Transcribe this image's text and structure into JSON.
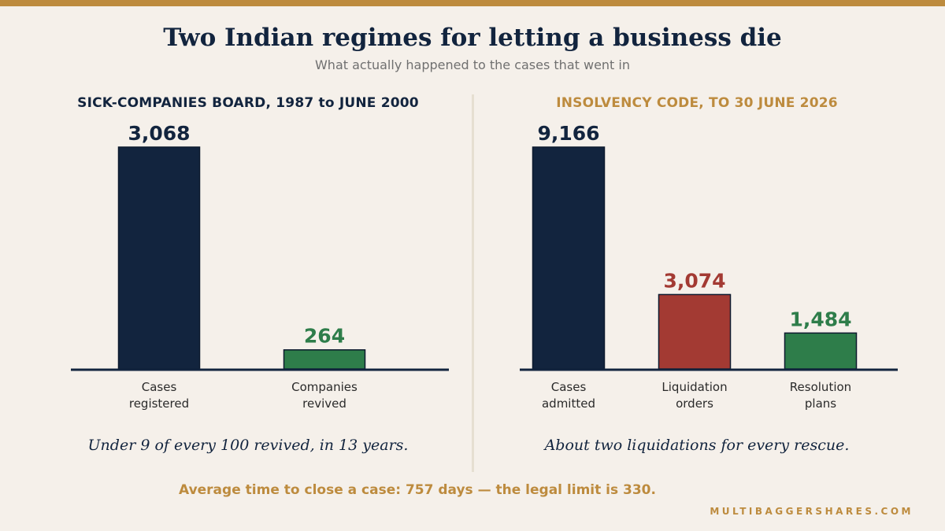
{
  "title": "Two Indian regimes for letting a business die",
  "subtitle": "What actually happened to the cases that went in",
  "colors": {
    "accent": "#bd8b3e",
    "navy": "#12243e",
    "red": "#a33a33",
    "green": "#2e7d4a",
    "background": "#f5f0ea"
  },
  "chart_data": [
    {
      "type": "bar",
      "title": "SICK-COMPANIES BOARD, 1987 to JUNE 2000",
      "categories": [
        "Cases registered",
        "Companies revived"
      ],
      "category_lines": [
        [
          "Cases",
          "registered"
        ],
        [
          "Companies",
          "revived"
        ]
      ],
      "values": [
        3068,
        264
      ],
      "value_labels": [
        "3,068",
        "264"
      ],
      "bar_colors": [
        "#12243e",
        "#2e7d4a"
      ],
      "ylim": [
        0,
        3068
      ],
      "grid": false
    },
    {
      "type": "bar",
      "title": "INSOLVENCY CODE, TO 30 JUNE 2026",
      "categories": [
        "Cases admitted",
        "Liquidation orders",
        "Resolution plans"
      ],
      "category_lines": [
        [
          "Cases",
          "admitted"
        ],
        [
          "Liquidation",
          "orders"
        ],
        [
          "Resolution",
          "plans"
        ]
      ],
      "values": [
        9166,
        3074,
        1484
      ],
      "value_labels": [
        "9,166",
        "3,074",
        "1,484"
      ],
      "bar_colors": [
        "#12243e",
        "#a33a33",
        "#2e7d4a"
      ],
      "ylim": [
        0,
        9166
      ],
      "grid": false
    }
  ],
  "captions": {
    "left": "Under 9 of every 100 revived, in 13 years.",
    "right": "About two liquidations for every rescue."
  },
  "footer_note": "Average time to close a case: 757 days — the legal limit is 330.",
  "source": "MULTIBAGGERSHARES.COM"
}
